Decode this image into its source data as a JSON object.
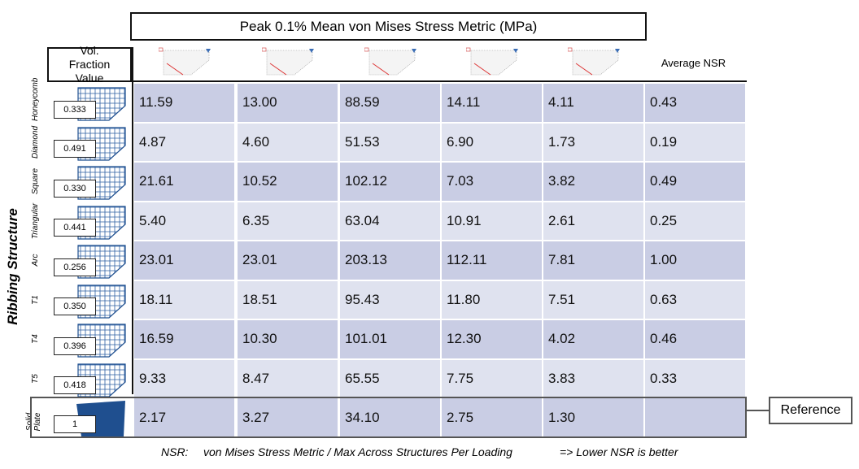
{
  "header": {
    "title": "Peak 0.1% Mean von Mises Stress Metric (MPa)",
    "vol_fraction_label": "Vol. Fraction Value",
    "average_label": "Average NSR",
    "side_label": "Ribbing Structure"
  },
  "rows": [
    {
      "name": "Honeycomb",
      "vol_fraction": "0.333",
      "values": [
        "11.59",
        "13.00",
        "88.59",
        "14.11",
        "4.11"
      ],
      "average_nsr": "0.43"
    },
    {
      "name": "Diamond",
      "vol_fraction": "0.491",
      "values": [
        "4.87",
        "4.60",
        "51.53",
        "6.90",
        "1.73"
      ],
      "average_nsr": "0.19"
    },
    {
      "name": "Square",
      "vol_fraction": "0.330",
      "values": [
        "21.61",
        "10.52",
        "102.12",
        "7.03",
        "3.82"
      ],
      "average_nsr": "0.49"
    },
    {
      "name": "Triangular",
      "vol_fraction": "0.441",
      "values": [
        "5.40",
        "6.35",
        "63.04",
        "10.91",
        "2.61"
      ],
      "average_nsr": "0.25"
    },
    {
      "name": "Arc",
      "vol_fraction": "0.256",
      "values": [
        "23.01",
        "23.01",
        "203.13",
        "112.11",
        "7.81"
      ],
      "average_nsr": "1.00"
    },
    {
      "name": "T1",
      "vol_fraction": "0.350",
      "values": [
        "18.11",
        "18.51",
        "95.43",
        "11.80",
        "7.51"
      ],
      "average_nsr": "0.63"
    },
    {
      "name": "T4",
      "vol_fraction": "0.396",
      "values": [
        "16.59",
        "10.30",
        "101.01",
        "12.30",
        "4.02"
      ],
      "average_nsr": "0.46"
    },
    {
      "name": "T5",
      "vol_fraction": "0.418",
      "values": [
        "9.33",
        "8.47",
        "65.55",
        "7.75",
        "3.83"
      ],
      "average_nsr": "0.33"
    },
    {
      "name": "Solid Plate",
      "vol_fraction": "1",
      "values": [
        "2.17",
        "3.27",
        "34.10",
        "2.75",
        "1.30"
      ]
    }
  ],
  "reference_label": "Reference",
  "footnote": {
    "term": "NSR:",
    "definition": "von Mises Stress Metric / Max Across Structures Per Loading",
    "conclusion": "=> Lower NSR is better"
  }
}
